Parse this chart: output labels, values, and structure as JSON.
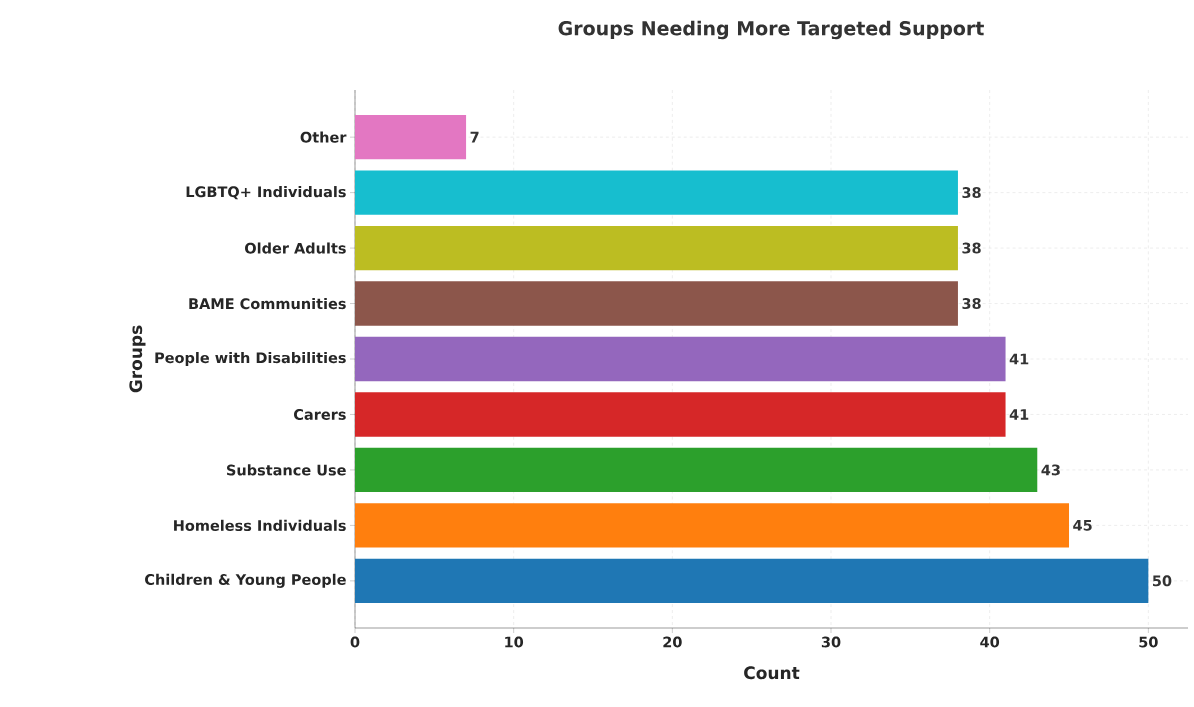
{
  "chart_data": {
    "type": "bar",
    "orientation": "horizontal",
    "title": "Groups Needing More Targeted Support",
    "xlabel": "Count",
    "ylabel": "Groups",
    "categories": [
      "Other",
      "LGBTQ+ Individuals",
      "Older Adults",
      "BAME Communities",
      "People with Disabilities",
      "Carers",
      "Substance Use",
      "Homeless Individuals",
      "Children & Young People"
    ],
    "values": [
      7,
      38,
      38,
      38,
      41,
      41,
      43,
      45,
      50
    ],
    "colors": [
      "#e377c2",
      "#17becf",
      "#bcbd22",
      "#8c564b",
      "#9467bd",
      "#d62728",
      "#2ca02c",
      "#ff7f0e",
      "#1f77b4"
    ],
    "xlim": [
      0,
      52.5
    ],
    "xticks": [
      0,
      10,
      20,
      30,
      40,
      50
    ],
    "grid": true,
    "data_labels": true
  }
}
